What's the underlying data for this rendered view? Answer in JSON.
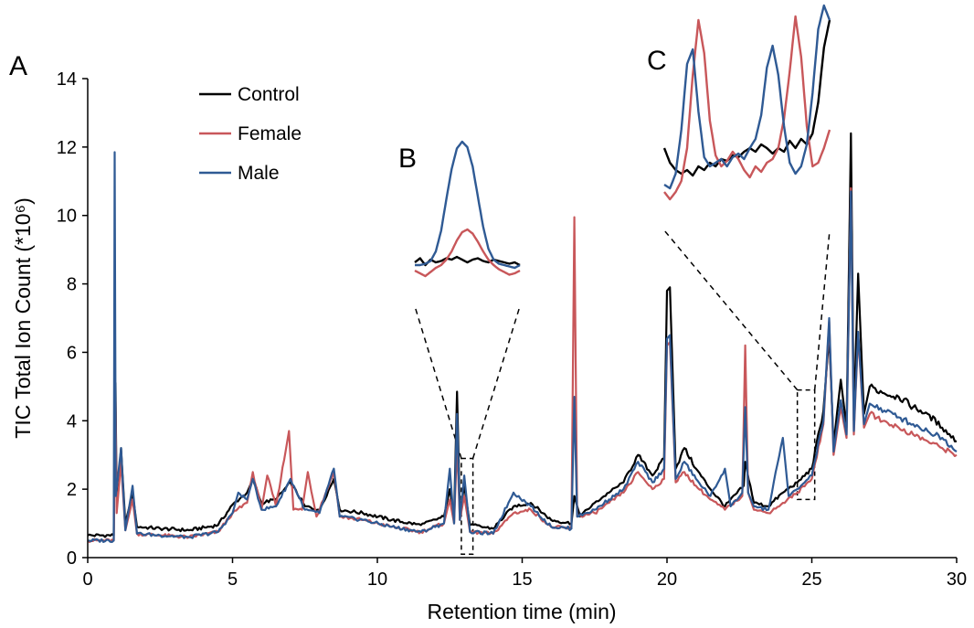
{
  "chart_data": {
    "type": "line",
    "xlabel": "Retention time (min)",
    "ylabel": "TIC Total Ion Count (*10⁶)",
    "xlim": [
      0,
      30
    ],
    "ylim": [
      0,
      14
    ],
    "x_ticks": [
      0,
      5,
      10,
      15,
      20,
      25,
      30
    ],
    "y_ticks": [
      0,
      2,
      4,
      6,
      8,
      10,
      12,
      14
    ],
    "grid": false,
    "legend_position": "top-left",
    "panel_labels": [
      "A",
      "B",
      "C"
    ],
    "colors": {
      "Control": "#000000",
      "Female": "#c8575a",
      "Male": "#2f5a94"
    },
    "series": [
      {
        "name": "Control",
        "color": "#000000",
        "points": [
          [
            0,
            0.65
          ],
          [
            0.9,
            0.65
          ],
          [
            0.93,
            4.2
          ],
          [
            0.96,
            5.1
          ],
          [
            1.0,
            1.5
          ],
          [
            1.15,
            3.2
          ],
          [
            1.3,
            1.0
          ],
          [
            1.55,
            1.9
          ],
          [
            1.7,
            0.9
          ],
          [
            2.5,
            0.85
          ],
          [
            3.5,
            0.8
          ],
          [
            4.5,
            0.95
          ],
          [
            5.0,
            1.55
          ],
          [
            5.5,
            1.9
          ],
          [
            5.7,
            2.3
          ],
          [
            6.0,
            1.6
          ],
          [
            6.5,
            1.7
          ],
          [
            7.0,
            2.2
          ],
          [
            7.5,
            1.5
          ],
          [
            8.0,
            1.4
          ],
          [
            8.5,
            2.3
          ],
          [
            8.7,
            1.4
          ],
          [
            9.5,
            1.3
          ],
          [
            10.5,
            1.1
          ],
          [
            11.5,
            0.95
          ],
          [
            12.3,
            1.2
          ],
          [
            12.5,
            2.0
          ],
          [
            12.65,
            1.2
          ],
          [
            12.75,
            4.85
          ],
          [
            12.85,
            1.3
          ],
          [
            13.0,
            2.1
          ],
          [
            13.2,
            0.95
          ],
          [
            14.0,
            0.85
          ],
          [
            14.7,
            1.5
          ],
          [
            15.3,
            1.6
          ],
          [
            16.0,
            1.1
          ],
          [
            16.7,
            1.0
          ],
          [
            16.8,
            1.8
          ],
          [
            17.0,
            1.2
          ],
          [
            17.5,
            1.6
          ],
          [
            18.0,
            1.9
          ],
          [
            18.5,
            2.2
          ],
          [
            19.0,
            3.0
          ],
          [
            19.5,
            2.4
          ],
          [
            19.9,
            2.9
          ],
          [
            20.0,
            7.8
          ],
          [
            20.1,
            7.9
          ],
          [
            20.3,
            2.6
          ],
          [
            20.6,
            3.2
          ],
          [
            21.0,
            2.6
          ],
          [
            21.5,
            2.0
          ],
          [
            22.0,
            1.5
          ],
          [
            22.65,
            2.1
          ],
          [
            22.7,
            2.8
          ],
          [
            23.0,
            1.6
          ],
          [
            23.5,
            1.5
          ],
          [
            24.0,
            1.9
          ],
          [
            24.5,
            2.2
          ],
          [
            25.0,
            2.6
          ],
          [
            25.4,
            4.3
          ],
          [
            25.6,
            6.5
          ],
          [
            25.75,
            3.3
          ],
          [
            26.0,
            5.2
          ],
          [
            26.2,
            3.8
          ],
          [
            26.35,
            12.4
          ],
          [
            26.45,
            4.0
          ],
          [
            26.6,
            8.3
          ],
          [
            26.8,
            4.2
          ],
          [
            27.0,
            5.0
          ],
          [
            27.5,
            4.8
          ],
          [
            28.0,
            4.7
          ],
          [
            28.5,
            4.4
          ],
          [
            29.0,
            4.2
          ],
          [
            29.5,
            3.8
          ],
          [
            30,
            3.4
          ]
        ]
      },
      {
        "name": "Female",
        "color": "#c8575a",
        "points": [
          [
            0,
            0.5
          ],
          [
            0.9,
            0.5
          ],
          [
            0.93,
            3.5
          ],
          [
            0.96,
            4.6
          ],
          [
            1.0,
            1.3
          ],
          [
            1.15,
            2.8
          ],
          [
            1.3,
            0.8
          ],
          [
            1.55,
            1.7
          ],
          [
            1.7,
            0.7
          ],
          [
            2.5,
            0.65
          ],
          [
            3.5,
            0.6
          ],
          [
            4.5,
            0.75
          ],
          [
            5.0,
            1.3
          ],
          [
            5.5,
            1.6
          ],
          [
            5.7,
            2.5
          ],
          [
            6.0,
            1.4
          ],
          [
            6.2,
            2.4
          ],
          [
            6.5,
            1.5
          ],
          [
            6.95,
            3.7
          ],
          [
            7.1,
            1.4
          ],
          [
            7.4,
            1.4
          ],
          [
            7.6,
            2.5
          ],
          [
            7.9,
            1.2
          ],
          [
            8.5,
            2.5
          ],
          [
            8.7,
            1.2
          ],
          [
            9.5,
            1.1
          ],
          [
            10.5,
            0.9
          ],
          [
            11.5,
            0.75
          ],
          [
            12.3,
            1.0
          ],
          [
            12.5,
            1.7
          ],
          [
            12.65,
            1.0
          ],
          [
            12.75,
            3.3
          ],
          [
            12.85,
            1.1
          ],
          [
            13.0,
            1.8
          ],
          [
            13.2,
            0.75
          ],
          [
            14.0,
            0.7
          ],
          [
            14.7,
            1.3
          ],
          [
            15.3,
            1.4
          ],
          [
            16.0,
            0.9
          ],
          [
            16.7,
            0.85
          ],
          [
            16.8,
            9.95
          ],
          [
            16.9,
            1.2
          ],
          [
            17.5,
            1.3
          ],
          [
            18.0,
            1.6
          ],
          [
            18.5,
            1.9
          ],
          [
            19.0,
            2.5
          ],
          [
            19.5,
            2.0
          ],
          [
            19.9,
            2.3
          ],
          [
            20.0,
            6.2
          ],
          [
            20.1,
            6.3
          ],
          [
            20.3,
            2.2
          ],
          [
            20.6,
            2.5
          ],
          [
            21.0,
            2.1
          ],
          [
            21.5,
            1.7
          ],
          [
            22.0,
            1.4
          ],
          [
            22.6,
            1.8
          ],
          [
            22.7,
            6.2
          ],
          [
            22.8,
            1.9
          ],
          [
            23.0,
            1.4
          ],
          [
            23.5,
            1.3
          ],
          [
            24.0,
            1.6
          ],
          [
            24.5,
            1.9
          ],
          [
            25.0,
            2.3
          ],
          [
            25.4,
            3.9
          ],
          [
            25.6,
            6.9
          ],
          [
            25.75,
            3.0
          ],
          [
            26.0,
            4.4
          ],
          [
            26.2,
            3.5
          ],
          [
            26.35,
            10.8
          ],
          [
            26.45,
            3.6
          ],
          [
            26.6,
            6.5
          ],
          [
            26.8,
            3.8
          ],
          [
            27.0,
            4.2
          ],
          [
            27.5,
            4.0
          ],
          [
            28.0,
            3.8
          ],
          [
            28.5,
            3.6
          ],
          [
            29.0,
            3.4
          ],
          [
            29.5,
            3.2
          ],
          [
            30,
            3.0
          ]
        ]
      },
      {
        "name": "Male",
        "color": "#2f5a94",
        "points": [
          [
            0,
            0.5
          ],
          [
            0.9,
            0.5
          ],
          [
            0.93,
            11.85
          ],
          [
            0.97,
            1.8
          ],
          [
            1.15,
            3.2
          ],
          [
            1.3,
            0.8
          ],
          [
            1.55,
            2.1
          ],
          [
            1.7,
            0.7
          ],
          [
            2.5,
            0.65
          ],
          [
            3.5,
            0.6
          ],
          [
            4.5,
            0.75
          ],
          [
            5.0,
            1.3
          ],
          [
            5.2,
            1.9
          ],
          [
            5.5,
            1.7
          ],
          [
            5.7,
            2.3
          ],
          [
            6.0,
            1.4
          ],
          [
            6.5,
            1.5
          ],
          [
            7.0,
            2.3
          ],
          [
            7.5,
            1.4
          ],
          [
            8.0,
            1.3
          ],
          [
            8.5,
            2.6
          ],
          [
            8.7,
            1.2
          ],
          [
            9.5,
            1.1
          ],
          [
            10.5,
            0.9
          ],
          [
            11.5,
            0.75
          ],
          [
            12.3,
            1.0
          ],
          [
            12.5,
            2.6
          ],
          [
            12.65,
            1.0
          ],
          [
            12.75,
            4.2
          ],
          [
            12.85,
            1.1
          ],
          [
            13.0,
            2.4
          ],
          [
            13.2,
            0.75
          ],
          [
            14.0,
            0.7
          ],
          [
            14.7,
            1.9
          ],
          [
            15.3,
            1.5
          ],
          [
            16.0,
            0.9
          ],
          [
            16.7,
            0.85
          ],
          [
            16.8,
            4.7
          ],
          [
            16.9,
            1.2
          ],
          [
            17.5,
            1.4
          ],
          [
            18.0,
            1.7
          ],
          [
            18.5,
            2.0
          ],
          [
            19.0,
            2.8
          ],
          [
            19.5,
            2.2
          ],
          [
            19.9,
            2.6
          ],
          [
            20.0,
            6.4
          ],
          [
            20.1,
            6.5
          ],
          [
            20.3,
            2.3
          ],
          [
            20.6,
            2.8
          ],
          [
            21.0,
            2.3
          ],
          [
            21.5,
            1.8
          ],
          [
            22.0,
            2.6
          ],
          [
            22.2,
            1.5
          ],
          [
            22.6,
            1.9
          ],
          [
            22.7,
            4.4
          ],
          [
            22.8,
            1.9
          ],
          [
            23.0,
            1.5
          ],
          [
            23.5,
            1.4
          ],
          [
            24.0,
            3.5
          ],
          [
            24.2,
            1.8
          ],
          [
            24.5,
            2.0
          ],
          [
            25.0,
            2.4
          ],
          [
            25.4,
            4.0
          ],
          [
            25.6,
            7.0
          ],
          [
            25.75,
            3.1
          ],
          [
            26.0,
            4.6
          ],
          [
            26.2,
            3.6
          ],
          [
            26.35,
            10.7
          ],
          [
            26.45,
            3.7
          ],
          [
            26.6,
            6.6
          ],
          [
            26.8,
            3.9
          ],
          [
            27.0,
            4.5
          ],
          [
            27.5,
            4.3
          ],
          [
            28.0,
            4.1
          ],
          [
            28.5,
            3.9
          ],
          [
            29.0,
            3.7
          ],
          [
            29.5,
            3.5
          ],
          [
            30,
            3.1
          ]
        ]
      }
    ],
    "insets": [
      {
        "label": "B",
        "source_box": {
          "x": [
            12.9,
            13.3
          ],
          "y": [
            0.1,
            2.9
          ]
        },
        "series": [
          {
            "name": "Control",
            "values": [
              0.12,
              0.15,
              0.1,
              0.14,
              0.12,
              0.13,
              0.15,
              0.14,
              0.16,
              0.14,
              0.12,
              0.14,
              0.15,
              0.13,
              0.12,
              0.14,
              0.13,
              0.12,
              0.11,
              0.12,
              0.1
            ]
          },
          {
            "name": "Female",
            "values": [
              0.06,
              0.04,
              0.02,
              0.05,
              0.08,
              0.1,
              0.14,
              0.2,
              0.28,
              0.34,
              0.36,
              0.33,
              0.27,
              0.2,
              0.14,
              0.1,
              0.07,
              0.05,
              0.03,
              0.04,
              0.06
            ]
          },
          {
            "name": "Male",
            "values": [
              0.1,
              0.1,
              0.11,
              0.13,
              0.2,
              0.35,
              0.58,
              0.8,
              0.95,
              1.0,
              0.96,
              0.82,
              0.6,
              0.38,
              0.22,
              0.14,
              0.11,
              0.1,
              0.09,
              0.08,
              0.1
            ]
          }
        ]
      },
      {
        "label": "C",
        "source_box": {
          "x": [
            24.5,
            25.1
          ],
          "y": [
            1.7,
            4.9
          ]
        },
        "series": [
          {
            "name": "Control",
            "values": [
              0.3,
              0.22,
              0.18,
              0.16,
              0.18,
              0.15,
              0.2,
              0.18,
              0.22,
              0.2,
              0.24,
              0.23,
              0.26,
              0.25,
              0.28,
              0.3,
              0.28,
              0.32,
              0.3,
              0.27,
              0.3,
              0.28,
              0.34,
              0.3,
              0.35,
              0.32,
              0.38,
              0.55,
              0.85,
              1.0
            ]
          },
          {
            "name": "Female",
            "values": [
              0.06,
              0.02,
              0.06,
              0.12,
              0.3,
              0.7,
              1.0,
              0.82,
              0.45,
              0.26,
              0.2,
              0.23,
              0.28,
              0.24,
              0.18,
              0.14,
              0.2,
              0.17,
              0.22,
              0.24,
              0.3,
              0.46,
              0.72,
              1.02,
              0.8,
              0.42,
              0.2,
              0.22,
              0.3,
              0.4
            ]
          },
          {
            "name": "Male",
            "values": [
              0.1,
              0.08,
              0.16,
              0.4,
              0.76,
              0.84,
              0.5,
              0.25,
              0.2,
              0.22,
              0.24,
              0.2,
              0.25,
              0.27,
              0.24,
              0.3,
              0.35,
              0.48,
              0.74,
              0.86,
              0.7,
              0.42,
              0.22,
              0.16,
              0.2,
              0.32,
              0.6,
              0.95,
              1.08,
              1.0
            ]
          }
        ]
      }
    ]
  }
}
